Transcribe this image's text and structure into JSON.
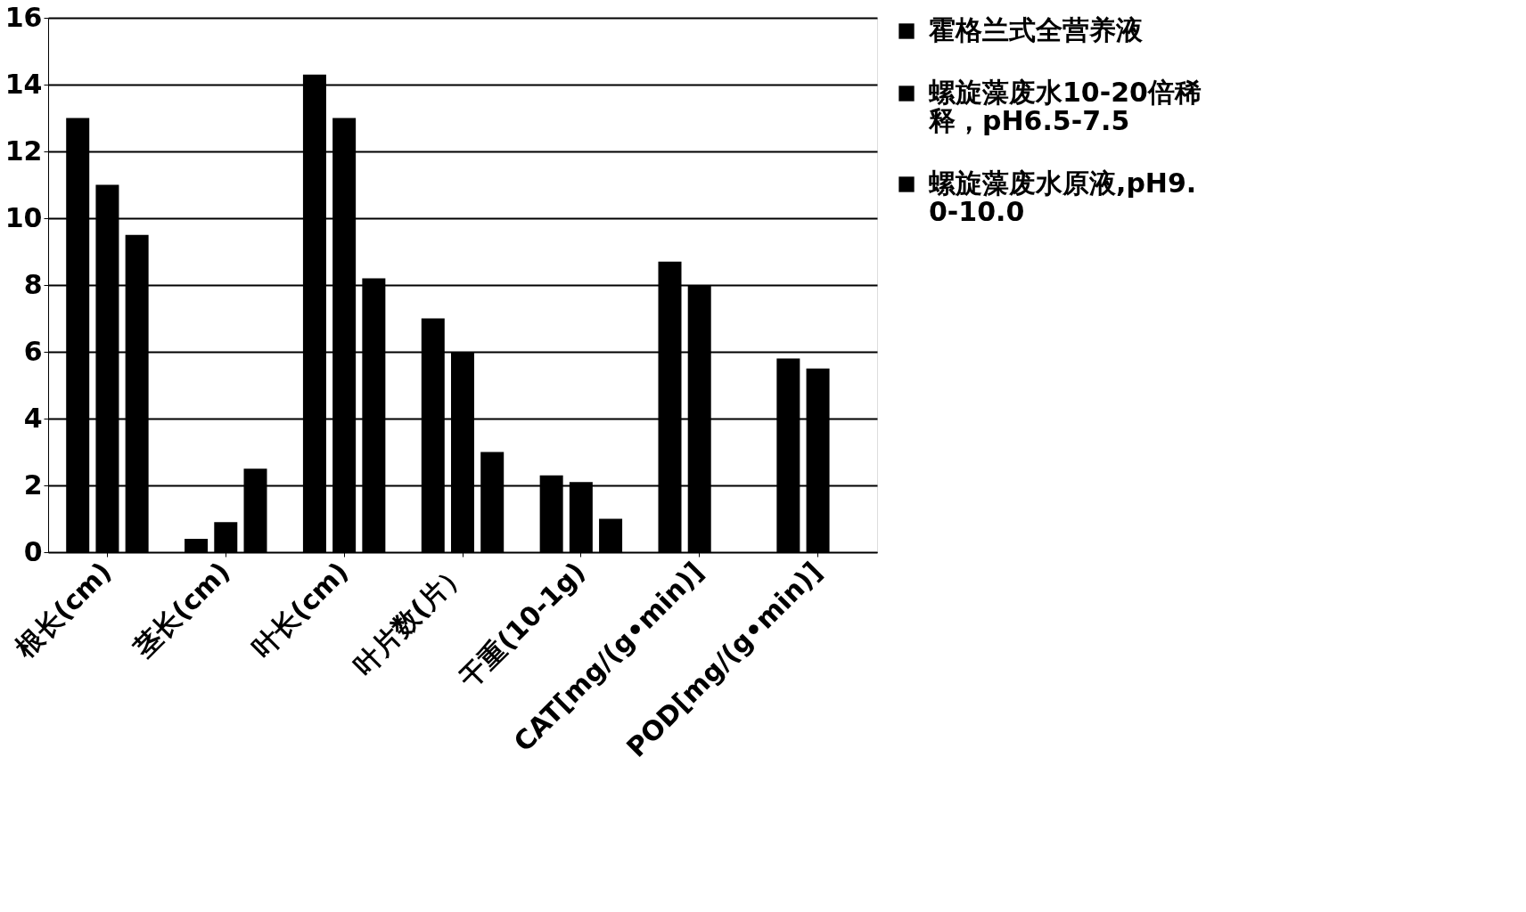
{
  "chart_data": {
    "type": "bar",
    "categories": [
      "根长(cm)",
      "茎长(cm)",
      "叶长(cm)",
      "叶片数(片）",
      "干重(10-1g)",
      "CAT[mg/(g•min)]",
      "POD[mg/(g•min)]"
    ],
    "series": [
      {
        "name": "霍格兰式全营养液",
        "color": "#000000",
        "values": [
          13,
          0.4,
          14.3,
          7,
          2.3,
          8.7,
          5.8
        ]
      },
      {
        "name": "螺旋藻废水10-20倍稀释，pH6.5-7.5",
        "color": "#000000",
        "values": [
          11,
          0.9,
          13,
          6,
          2.1,
          8,
          5.5
        ]
      },
      {
        "name": "螺旋藻废水原液,pH9.0-10.0",
        "color": "#000000",
        "values": [
          9.5,
          2.5,
          8.2,
          3,
          1,
          null,
          null
        ]
      }
    ],
    "ylim": [
      0,
      16
    ],
    "yticks": [
      0,
      2,
      4,
      6,
      8,
      10,
      12,
      14,
      16
    ],
    "grid": "y",
    "legend": "right"
  }
}
